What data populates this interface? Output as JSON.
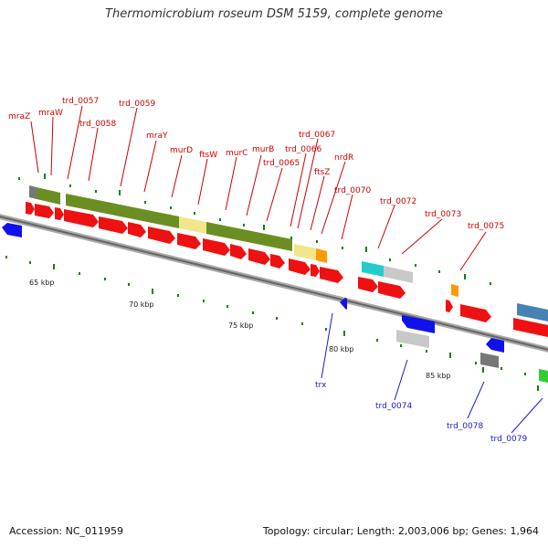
{
  "title": "Thermomicrobium roseum DSM 5159, complete genome",
  "footer": {
    "accession": "Accession: NC_011959",
    "summary": "Topology: circular; Length: 2,003,006 bp; Genes: 1,964"
  },
  "colors": {
    "cds_red": "#ee1111",
    "cds_blue": "#1111ee",
    "go_green": "#6b8e23",
    "go_khaki": "#f0e68c",
    "go_grey": "#777777",
    "go_orange": "#ff9900",
    "go_cyan": "#22cccc",
    "go_silver": "#c8c8c8",
    "go_steel": "#4682b4",
    "go_lime": "#33cc33",
    "label_top": "#cc0000",
    "label_bottom": "#1a1acc",
    "tick": "#008800",
    "backbone": "#888888"
  },
  "axis_labels": [
    "65 kbp",
    "70 kbp",
    "75 kbp",
    "80 kbp",
    "85 kbp"
  ],
  "genes_top_labels": [
    "mraZ",
    "mraW",
    "trd_0057",
    "trd_0058",
    "trd_0059",
    "mraY",
    "murD",
    "ftsW",
    "murC",
    "murB",
    "trd_0065",
    "trd_0066",
    "trd_0067",
    "ftsZ",
    "nrdR",
    "trd_0070",
    "trd_0072",
    "trd_0073",
    "trd_0075"
  ],
  "genes_bottom_labels": [
    "trx",
    "trd_0074",
    "trd_0078",
    "trd_0079"
  ],
  "icons": {
    "plus_strand": "right-arrow-shape",
    "minus_strand": "left-arrow-shape"
  }
}
